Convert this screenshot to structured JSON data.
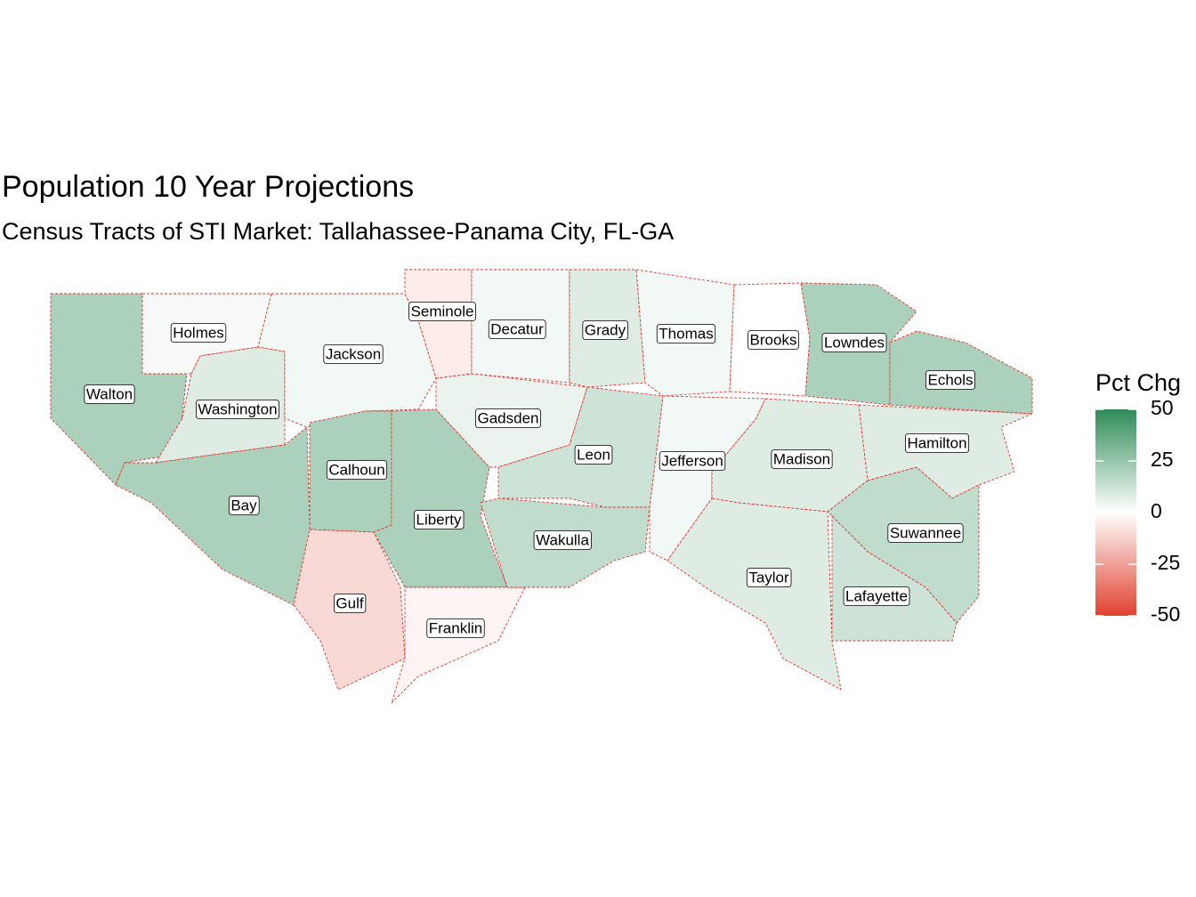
{
  "title": "Population 10 Year Projections",
  "subtitle": "Census Tracts of STI Market: Tallahassee-Panama City, FL-GA",
  "legend": {
    "title": "Pct Chg",
    "range": [
      -50,
      50
    ],
    "ticks": [
      50,
      25,
      0,
      -25,
      -50
    ],
    "colors": {
      "low": "#e0412f",
      "mid": "#ffffff",
      "high": "#2e8b57"
    }
  },
  "counties": [
    {
      "label": "Walton",
      "value": 20
    },
    {
      "label": "Holmes",
      "value": 2
    },
    {
      "label": "Washington",
      "value": 8
    },
    {
      "label": "Jackson",
      "value": 3
    },
    {
      "label": "Bay",
      "value": 20
    },
    {
      "label": "Calhoun",
      "value": 20
    },
    {
      "label": "Gulf",
      "value": -10
    },
    {
      "label": "Liberty",
      "value": 20
    },
    {
      "label": "Franklin",
      "value": -3
    },
    {
      "label": "Gadsden",
      "value": 5
    },
    {
      "label": "Seminole",
      "value": -5
    },
    {
      "label": "Decatur",
      "value": 3
    },
    {
      "label": "Grady",
      "value": 8
    },
    {
      "label": "Thomas",
      "value": 3
    },
    {
      "label": "Brooks",
      "value": 0
    },
    {
      "label": "Lowndes",
      "value": 20
    },
    {
      "label": "Echols",
      "value": 20
    },
    {
      "label": "Leon",
      "value": 12
    },
    {
      "label": "Wakulla",
      "value": 15
    },
    {
      "label": "Jefferson",
      "value": 3
    },
    {
      "label": "Madison",
      "value": 8
    },
    {
      "label": "Taylor",
      "value": 8
    },
    {
      "label": "Hamilton",
      "value": 8
    },
    {
      "label": "Suwannee",
      "value": 15
    },
    {
      "label": "Lafayette",
      "value": 12
    }
  ]
}
